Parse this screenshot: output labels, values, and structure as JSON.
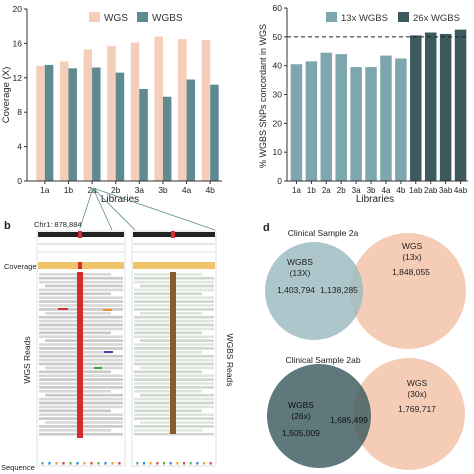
{
  "panel_labels": {
    "b": "b",
    "d": "d"
  },
  "chart_data": [
    {
      "type": "bar",
      "title": "",
      "xlabel": "Libraries",
      "ylabel": "Coverage (X)",
      "categories": [
        "1a",
        "1b",
        "2a",
        "2b",
        "3a",
        "3b",
        "4a",
        "4b"
      ],
      "series": [
        {
          "name": "WGS",
          "values": [
            13.4,
            13.9,
            15.3,
            15.7,
            16.1,
            16.8,
            16.5,
            16.4
          ],
          "color": "#f5cdb8"
        },
        {
          "name": "WGBS",
          "values": [
            13.5,
            13.1,
            13.2,
            12.6,
            10.7,
            9.8,
            11.8,
            11.2
          ],
          "color": "#5e8b92"
        }
      ],
      "ylim": [
        0,
        20
      ],
      "yticks": [
        0,
        4,
        8,
        12,
        16,
        20
      ],
      "legend": "top-center"
    },
    {
      "type": "bar",
      "title": "",
      "xlabel": "Libraries",
      "ylabel": "% WGBS SNPs concordant in WGS",
      "categories": [
        "1a",
        "1b",
        "2a",
        "2b",
        "3a",
        "3b",
        "4a",
        "4b",
        "1ab",
        "2ab",
        "3ab",
        "4ab"
      ],
      "values": [
        40.5,
        41.5,
        44.5,
        44,
        39.5,
        39.5,
        43.5,
        42.5,
        50.5,
        51.5,
        51,
        52.5
      ],
      "bar_series": [
        "13x WGBS",
        "13x WGBS",
        "13x WGBS",
        "13x WGBS",
        "13x WGBS",
        "13x WGBS",
        "13x WGBS",
        "13x WGBS",
        "26x WGBS",
        "26x WGBS",
        "26x WGBS",
        "26x WGBS"
      ],
      "series": [
        {
          "name": "13x WGBS",
          "color": "#7ea6ae"
        },
        {
          "name": "26x WGBS",
          "color": "#3c5a5e"
        }
      ],
      "reference_line": 50,
      "ylim": [
        0,
        60
      ],
      "yticks": [
        0,
        10,
        20,
        30,
        40,
        50,
        60
      ],
      "legend": "top-right"
    }
  ],
  "genome_browser": {
    "locus": "Chr1: 878,884",
    "track_labels": {
      "coverage": "Coverage",
      "wgs_reads": "WGS Reads",
      "wgbs_reads": "WGBS Reads",
      "sequence": "Sequence"
    }
  },
  "venn": [
    {
      "title": "Clinical Sample 2a",
      "left": {
        "label": "WGBS",
        "sub": "(13X)",
        "count": "1,403,794",
        "color": "#9dbcc2"
      },
      "right": {
        "label": "WGS",
        "sub": "(13x)",
        "count": "1,848,055",
        "color": "#f4c9b1"
      },
      "overlap": "1,138,285"
    },
    {
      "title": "Clinical Sample 2ab",
      "left": {
        "label": "WGBS",
        "sub": "(26x)",
        "count": "1,505,009",
        "color": "#3c5a5e"
      },
      "right": {
        "label": "WGS",
        "sub": "(30x)",
        "count": "1,769,717",
        "color": "#f4c9b1"
      },
      "overlap": "1,685,499"
    }
  ]
}
